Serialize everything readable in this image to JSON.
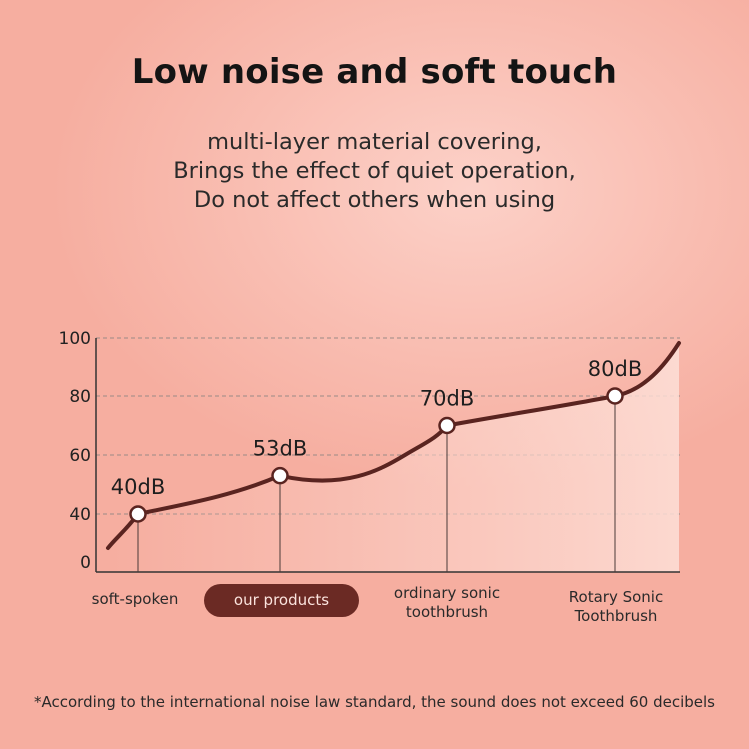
{
  "headline": "Low noise and soft touch",
  "subtitle": [
    "multi-layer material covering,",
    "Brings the effect of quiet operation,",
    "Do not affect others when using"
  ],
  "footnote": "*According to the international noise law standard, the sound does not exceed 60 decibels",
  "colors": {
    "curve": "#5a2420",
    "marker_fill": "#ffffff",
    "pill": "#6b2a24",
    "grid": "#9a8a86",
    "axis": "#333333"
  },
  "chart_data": {
    "type": "line",
    "title": "",
    "xlabel": "",
    "ylabel": "",
    "ylim": [
      0,
      100
    ],
    "y_ticks": [
      "0",
      "40",
      "60",
      "80",
      "100"
    ],
    "grid": true,
    "categories": [
      "soft-spoken",
      "our products",
      "ordinary sonic toothbrush",
      "Rotary Sonic Toothbrush"
    ],
    "points": [
      {
        "category": "soft-spoken",
        "value": 40,
        "label": "40dB"
      },
      {
        "category": "our products",
        "value": 53,
        "label": "53dB"
      },
      {
        "category": "ordinary sonic toothbrush",
        "value": 70,
        "label": "70dB"
      },
      {
        "category": "Rotary Sonic Toothbrush",
        "value": 80,
        "label": "80dB"
      }
    ],
    "category_lines": [
      [
        "soft-spoken"
      ],
      [
        "our products"
      ],
      [
        "ordinary sonic",
        "toothbrush"
      ],
      [
        "Rotary Sonic",
        "Toothbrush"
      ]
    ],
    "highlight_category": "our products"
  }
}
